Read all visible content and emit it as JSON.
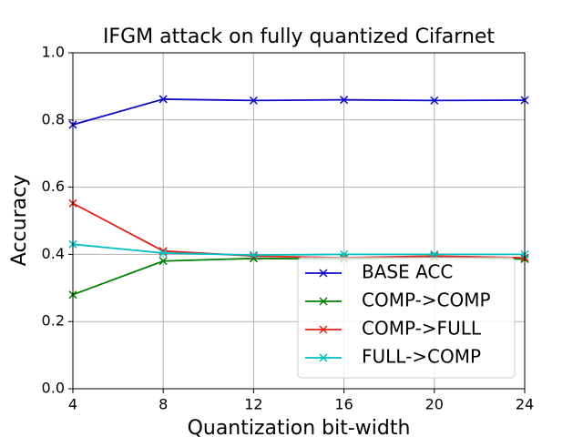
{
  "chart_data": {
    "type": "line",
    "title": "IFGM attack on fully quantized Cifarnet",
    "x_label": "Quantization bit-width",
    "y_label": "Accuracy",
    "x": [
      4,
      8,
      12,
      16,
      20,
      24
    ],
    "series": [
      {
        "name": "BASE ACC",
        "color": "#0b0bc8",
        "values": [
          0.786,
          0.862,
          0.858,
          0.86,
          0.858,
          0.859
        ]
      },
      {
        "name": "COMP->COMP",
        "color": "#008000",
        "values": [
          0.28,
          0.38,
          0.388,
          0.386,
          0.392,
          0.386
        ]
      },
      {
        "name": "COMP->FULL",
        "color": "#e0201a",
        "values": [
          0.552,
          0.41,
          0.395,
          0.39,
          0.395,
          0.39
        ]
      },
      {
        "name": "FULL->COMP",
        "color": "#00bfbf",
        "values": [
          0.43,
          0.404,
          0.398,
          0.4,
          0.4,
          0.4
        ]
      }
    ],
    "xlim": [
      4,
      24
    ],
    "xticks": [
      4,
      8,
      12,
      16,
      20,
      24
    ],
    "ylim": [
      0,
      1
    ],
    "yticks": [
      {
        "value": 0,
        "label": "0.0"
      },
      {
        "value": 0.2,
        "label": "0.2"
      },
      {
        "value": 0.4,
        "label": "0.4"
      },
      {
        "value": 0.6,
        "label": "0.6"
      },
      {
        "value": 0.8,
        "label": "0.8"
      },
      {
        "value": 1,
        "label": "1.0"
      }
    ],
    "grid": true,
    "legend": "lower right"
  }
}
